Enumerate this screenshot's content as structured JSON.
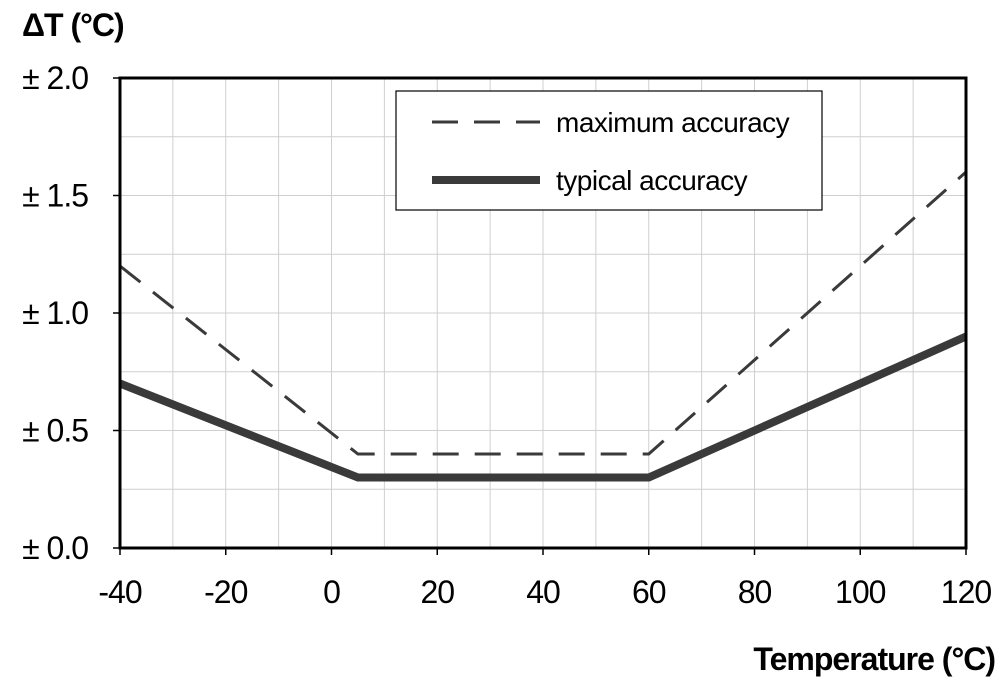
{
  "chart_data": {
    "type": "line",
    "title": "",
    "xlabel": "Temperature (°C)",
    "ylabel": "ΔT (°C)",
    "xlim": [
      -40,
      120
    ],
    "ylim": [
      0,
      2
    ],
    "x_ticks": [
      -40,
      -20,
      0,
      20,
      40,
      60,
      80,
      100,
      120
    ],
    "x_tick_labels": [
      "-40",
      "-20",
      "0",
      "20",
      "40",
      "60",
      "80",
      "100",
      "120"
    ],
    "y_ticks": [
      0,
      0.5,
      1.0,
      1.5,
      2.0
    ],
    "y_tick_labels": [
      "± 0.0",
      "± 0.5",
      "± 1.0",
      "± 1.5",
      "± 2.0"
    ],
    "grid": true,
    "legend_position": "top-center",
    "series": [
      {
        "name": "maximum accuracy",
        "style": "dashed",
        "color": "#3a3a3a",
        "points": [
          [
            -40,
            1.2
          ],
          [
            5,
            0.4
          ],
          [
            60,
            0.4
          ],
          [
            120,
            1.6
          ]
        ]
      },
      {
        "name": "typical accuracy",
        "style": "solid",
        "color": "#3a3a3a",
        "points": [
          [
            -40,
            0.7
          ],
          [
            5,
            0.3
          ],
          [
            60,
            0.3
          ],
          [
            120,
            0.9
          ]
        ]
      }
    ]
  }
}
